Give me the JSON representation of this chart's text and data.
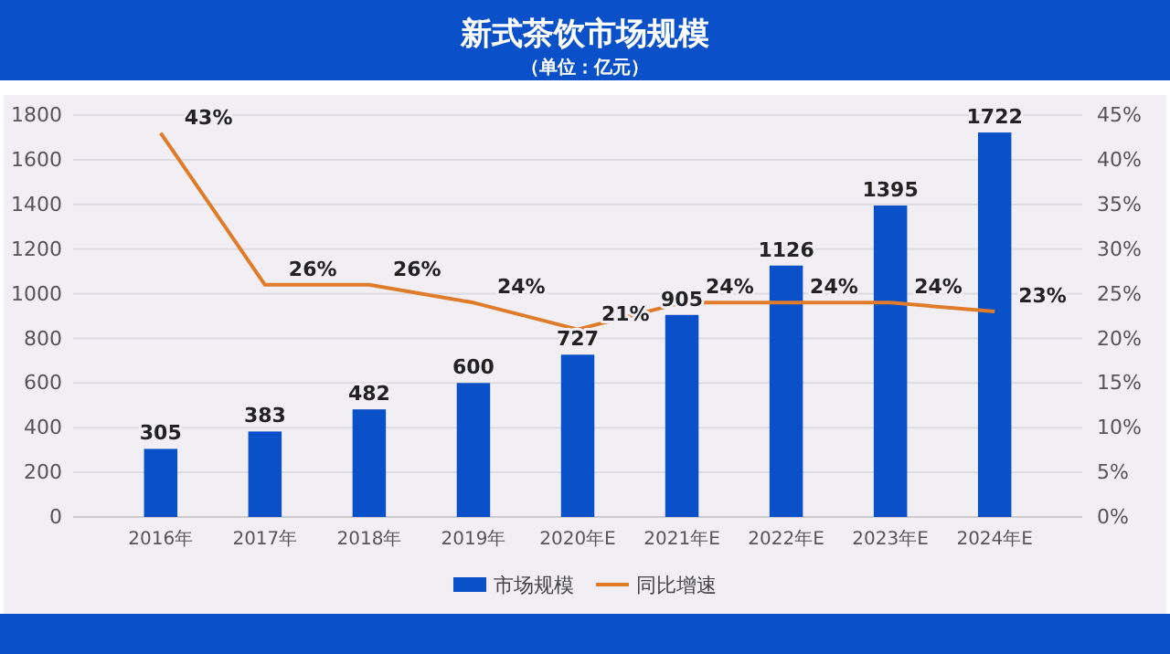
{
  "chart_data": {
    "type": "bar",
    "title": "新式茶饮市场规模",
    "subtitle": "（单位：亿元）",
    "categories": [
      "2016年",
      "2017年",
      "2018年",
      "2019年",
      "2020年E",
      "2021年E",
      "2022年E",
      "2023年E",
      "2024年E"
    ],
    "series": [
      {
        "name": "市场规模",
        "color": "#0a50c8",
        "values": [
          305,
          383,
          482,
          600,
          727,
          905,
          1126,
          1395,
          1722
        ]
      },
      {
        "name": "同比增速",
        "type": "line",
        "axis": "y2",
        "color": "#e07b2a",
        "values": [
          43,
          26,
          26,
          24,
          21,
          24,
          24,
          24,
          23
        ],
        "value_labels": [
          "43%",
          "26%",
          "26%",
          "24%",
          "21%",
          "24%",
          "24%",
          "24%",
          "23%"
        ]
      }
    ],
    "ylim": [
      0,
      1800
    ],
    "yticks": [
      0,
      200,
      400,
      600,
      800,
      1000,
      1200,
      1400,
      1600,
      1800
    ],
    "y2lim": [
      0,
      45
    ],
    "y2ticks": [
      {
        "value": 0,
        "label": "0%"
      },
      {
        "value": 5,
        "label": "5%"
      },
      {
        "value": 10,
        "label": "10%"
      },
      {
        "value": 15,
        "label": "15%"
      },
      {
        "value": 20,
        "label": "20%"
      },
      {
        "value": 25,
        "label": "25%"
      },
      {
        "value": 30,
        "label": "30%"
      },
      {
        "value": 35,
        "label": "35%"
      },
      {
        "value": 40,
        "label": "40%"
      },
      {
        "value": 45,
        "label": "45%"
      }
    ],
    "grid": "y",
    "legend": "bottom",
    "data_labels": true,
    "marker": "none"
  }
}
